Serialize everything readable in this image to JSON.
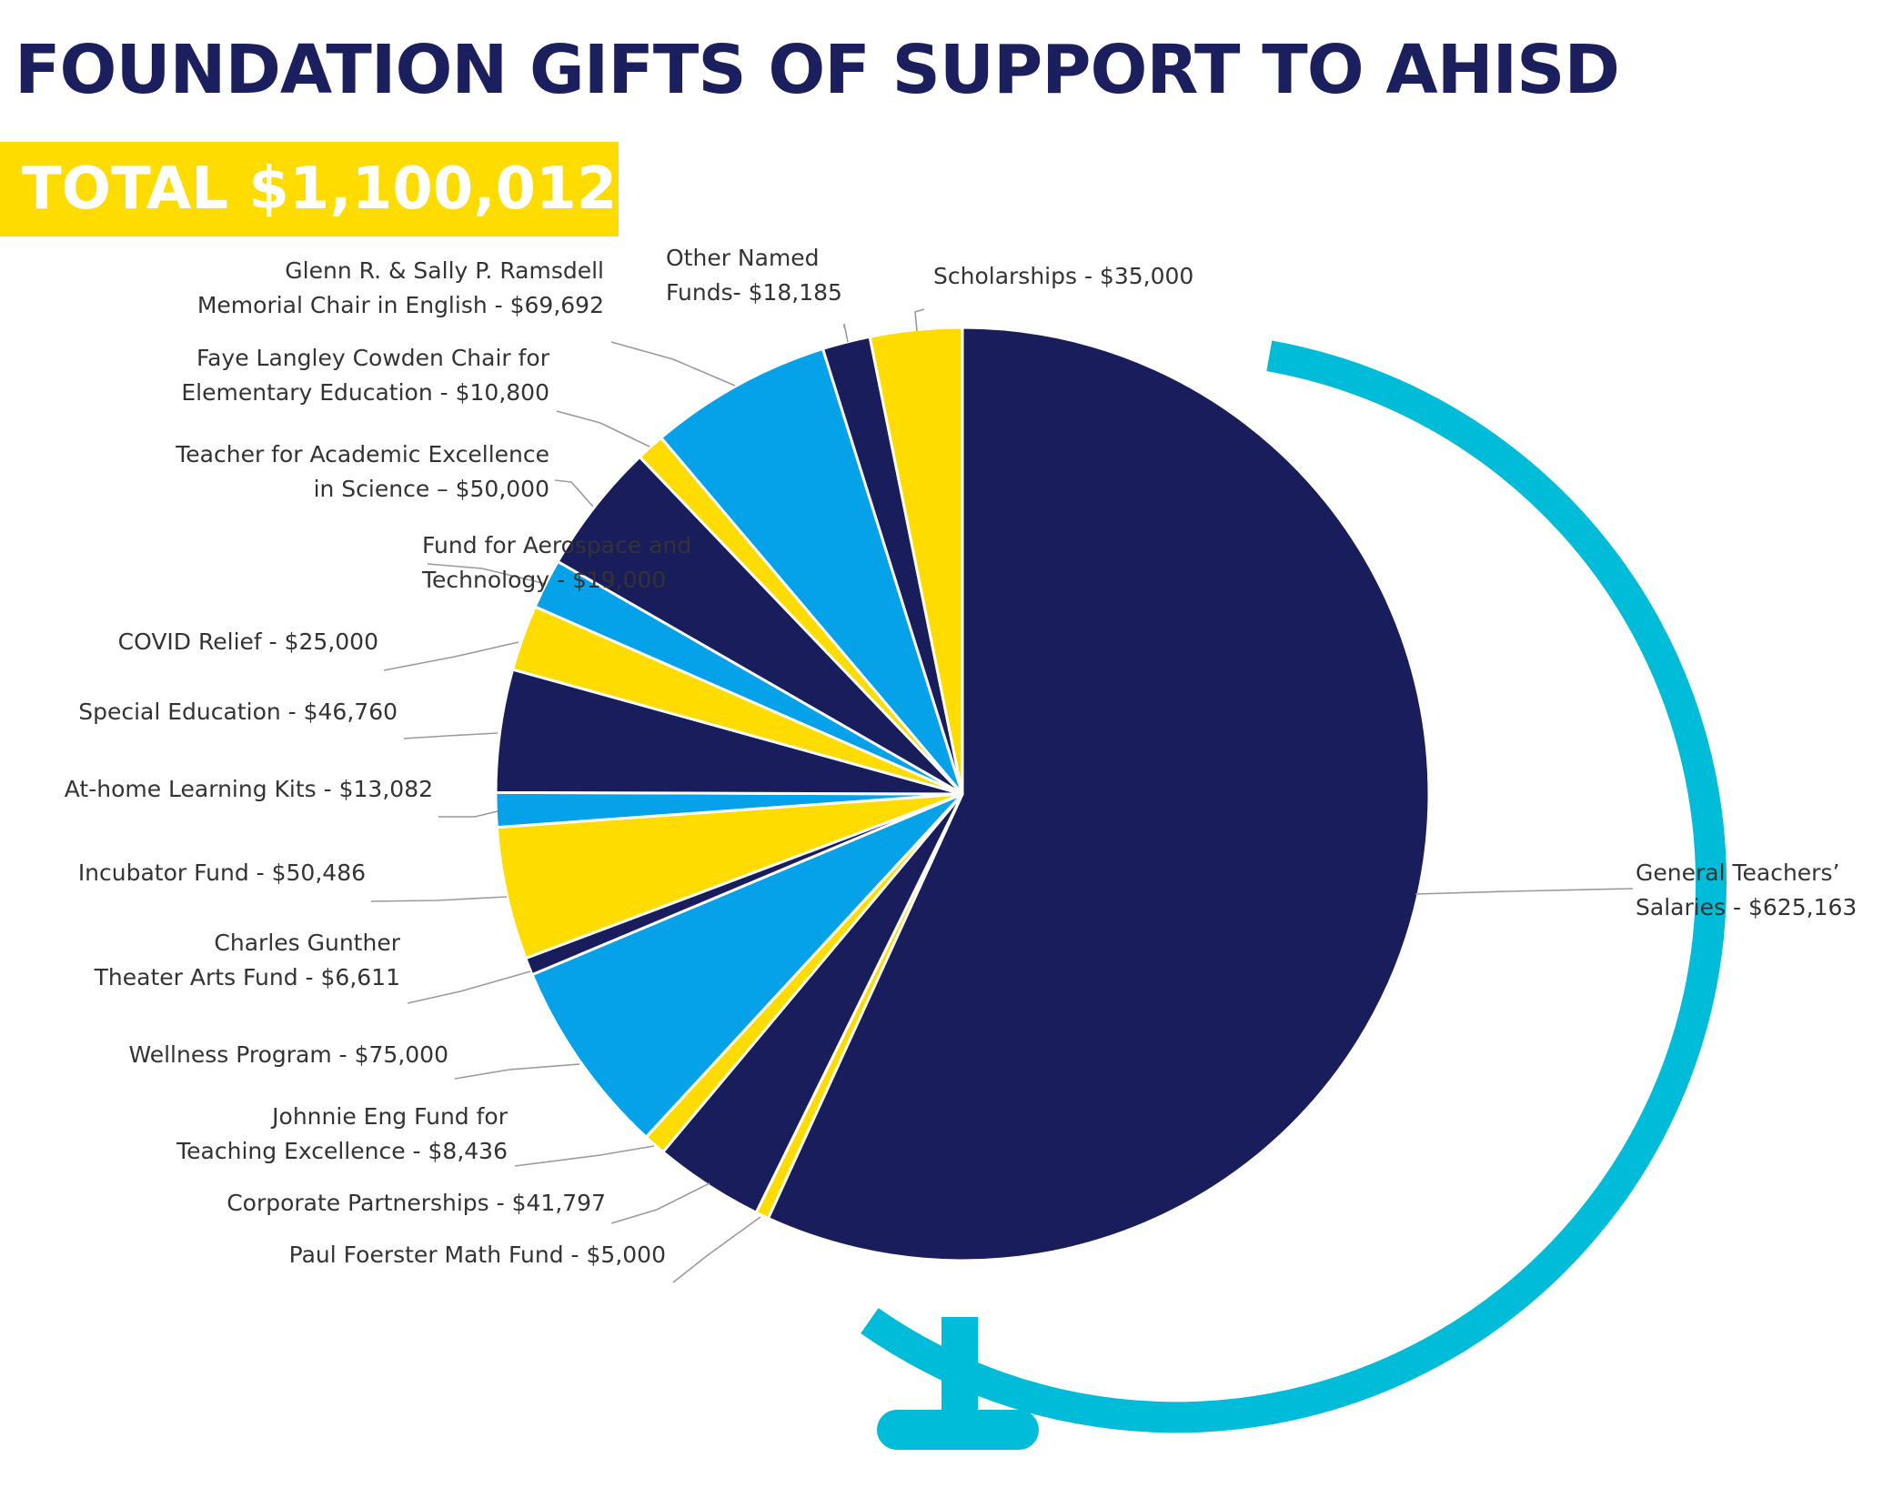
{
  "colors": {
    "navy": "#191d5c",
    "blue": "#05a2ea",
    "yellow": "#fedc00",
    "globe": "#00bcd9",
    "title": "#1b1f5e"
  },
  "chart_data": {
    "type": "pie",
    "title": "FOUNDATION GIFTS OF SUPPORT TO AHISD",
    "subtitle": "TOTAL $1,100,012",
    "slices": [
      {
        "label_lines": [
          "General Teachers’",
          "Salaries - $625,163"
        ],
        "value": 625163,
        "color": "navy"
      },
      {
        "label_lines": [
          "Paul Foerster Math Fund - $5,000"
        ],
        "value": 5000,
        "color": "yellow"
      },
      {
        "label_lines": [
          "Corporate Partnerships - $41,797"
        ],
        "value": 41797,
        "color": "navy"
      },
      {
        "label_lines": [
          "Johnnie Eng Fund for",
          "Teaching Excellence - $8,436"
        ],
        "value": 8436,
        "color": "yellow"
      },
      {
        "label_lines": [
          "Wellness Program - $75,000"
        ],
        "value": 75000,
        "color": "blue"
      },
      {
        "label_lines": [
          "Charles Gunther",
          "Theater Arts Fund - $6,611"
        ],
        "value": 6611,
        "color": "navy"
      },
      {
        "label_lines": [
          "Incubator Fund - $50,486"
        ],
        "value": 50486,
        "color": "yellow"
      },
      {
        "label_lines": [
          "At-home Learning Kits - $13,082"
        ],
        "value": 13082,
        "color": "blue"
      },
      {
        "label_lines": [
          "Special Education - $46,760"
        ],
        "value": 46760,
        "color": "navy"
      },
      {
        "label_lines": [
          "COVID Relief - $25,000"
        ],
        "value": 25000,
        "color": "yellow"
      },
      {
        "label_lines": [
          "Fund for Aerospace and",
          "Technology - $19,000"
        ],
        "value": 19000,
        "color": "blue"
      },
      {
        "label_lines": [
          "Teacher for Academic Excellence",
          "in Science – $50,000"
        ],
        "value": 50000,
        "color": "navy"
      },
      {
        "label_lines": [
          "Faye Langley Cowden Chair for",
          "Elementary Education - $10,800"
        ],
        "value": 10800,
        "color": "yellow"
      },
      {
        "label_lines": [
          "Glenn R. & Sally P. Ramsdell",
          "Memorial Chair in English - $69,692"
        ],
        "value": 69692,
        "color": "blue"
      },
      {
        "label_lines": [
          "Other Named",
          "Funds- $18,185"
        ],
        "value": 18185,
        "color": "navy"
      },
      {
        "label_lines": [
          "Scholarships - $35,000"
        ],
        "value": 35000,
        "color": "yellow"
      }
    ]
  }
}
